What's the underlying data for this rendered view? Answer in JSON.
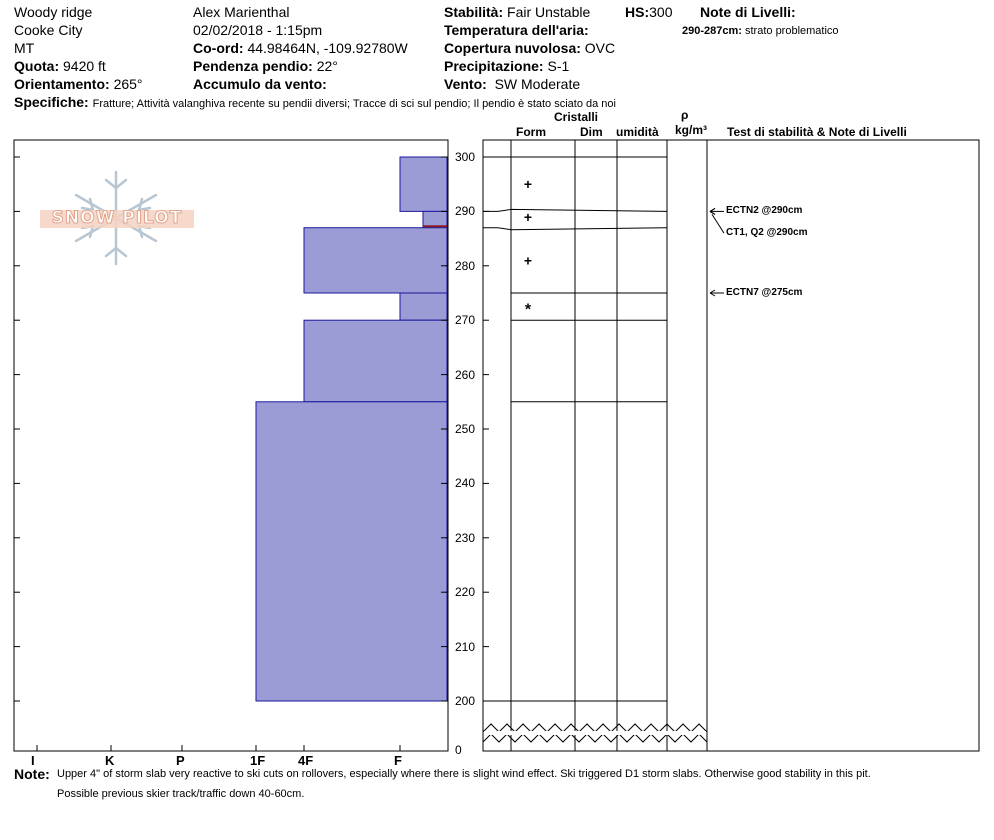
{
  "info": {
    "location": "Woody ridge",
    "area": "Cooke City",
    "state": "MT",
    "elevation_label": "Quota:",
    "elevation_value": "9420 ft",
    "aspect_label": "Orientamento:",
    "aspect_value": "265°",
    "observer": "Alex Marienthal",
    "datetime": "02/02/2018 - 1:15pm",
    "coord_label": "Co-ord:",
    "coord_value": "44.98464N, -109.92780W",
    "slope_label": "Pendenza pendio:",
    "slope_value": "22°",
    "wind_loading_label": "Accumulo da vento:",
    "wind_loading_value": "",
    "stability_label": "Stabilità:",
    "stability_value": "Fair Unstable",
    "hs_label": "HS:",
    "hs_value": "300",
    "air_temp_label": "Temperatura dell'aria:",
    "air_temp_value": "",
    "cloud_label": "Copertura nuvolosa:",
    "cloud_value": "OVC",
    "precip_label": "Precipitazione:",
    "precip_value": "S-1",
    "wind_label": "Vento:",
    "wind_value": "SW Moderate",
    "layer_notes_label": "Note di Livelli:",
    "layer_note_range": "290-287cm:",
    "layer_note_text": "strato problematico",
    "specifics_label": "Specifiche:",
    "specifics_value": "Fratture;  Attività valanghiva recente su pendii diversi;  Tracce di sci sul pendio;  Il pendio è stato sciato da noi"
  },
  "columns": {
    "crystals": "Cristalli",
    "form": "Form",
    "size": "Dim",
    "moisture": "umidità",
    "rho": "ρ",
    "density_unit": "kg/m³",
    "tests_notes": "Test di stabilità & Note di Livelli"
  },
  "hardness_axis": [
    "I",
    "K",
    "P",
    "1F",
    "4F",
    "F"
  ],
  "depth_ticks": [
    "300",
    "290",
    "280",
    "270",
    "260",
    "250",
    "240",
    "230",
    "220",
    "210",
    "200",
    "0"
  ],
  "hardness_layers": [
    {
      "top": 300,
      "bottom": 290,
      "hardness": "F"
    },
    {
      "top": 290,
      "bottom": 287,
      "hardness": "F"
    },
    {
      "top": 287,
      "bottom": 275,
      "hardness": "4F"
    },
    {
      "top": 275,
      "bottom": 270,
      "hardness": "F"
    },
    {
      "top": 270,
      "bottom": 255,
      "hardness": "4F"
    },
    {
      "top": 255,
      "bottom": 200,
      "hardness": "1F"
    }
  ],
  "grain_forms": [
    {
      "depth": 295,
      "symbol": "+"
    },
    {
      "depth": 289,
      "symbol": "+"
    },
    {
      "depth": 281,
      "symbol": "+"
    },
    {
      "depth": 272,
      "symbol": "*"
    }
  ],
  "tests": [
    {
      "label": "ECTN2 @290cm"
    },
    {
      "label": "CT1, Q2 @290cm"
    },
    {
      "label": "ECTN7 @275cm"
    }
  ],
  "notes_label": "Note:",
  "notes_line1": "Upper 4\" of storm slab very reactive to ski cuts on rollovers, especially where there is slight wind effect. Ski triggered D1 storm slabs. Otherwise good stability in this pit.",
  "notes_line2": "Possible previous skier track/traffic down 40-60cm.",
  "logo_text": "SNOW PILOT",
  "colors": {
    "layer_fill": "#9b9bd6",
    "layer_stroke": "#1a1a9a",
    "critical_layer": "#8b1a2a"
  }
}
